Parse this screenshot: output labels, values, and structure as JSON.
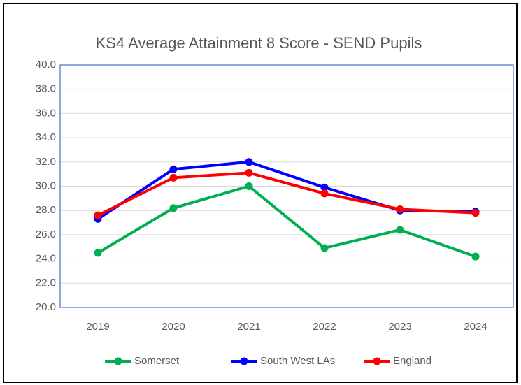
{
  "chart_data": {
    "type": "line",
    "title": "KS4 Average Attainment 8 Score - SEND Pupils",
    "categories": [
      "2019",
      "2020",
      "2021",
      "2022",
      "2023",
      "2024"
    ],
    "series": [
      {
        "name": "Somerset",
        "color": "#00b050",
        "values": [
          24.5,
          28.2,
          30.0,
          24.9,
          26.4,
          24.2
        ]
      },
      {
        "name": "South West LAs",
        "color": "#0000ff",
        "values": [
          27.3,
          31.4,
          32.0,
          29.9,
          28.0,
          27.9
        ]
      },
      {
        "name": "England",
        "color": "#ff0000",
        "values": [
          27.6,
          30.7,
          31.1,
          29.4,
          28.1,
          27.8
        ]
      }
    ],
    "ylim": [
      20,
      40
    ],
    "yticks": [
      {
        "value": 20,
        "label": "20.0"
      },
      {
        "value": 22,
        "label": "22.0"
      },
      {
        "value": 24,
        "label": "24.0"
      },
      {
        "value": 26,
        "label": "26.0"
      },
      {
        "value": 28,
        "label": "28.0"
      },
      {
        "value": 30,
        "label": "30.0"
      },
      {
        "value": 32,
        "label": "32.0"
      },
      {
        "value": 34,
        "label": "34.0"
      },
      {
        "value": 36,
        "label": "36.0"
      },
      {
        "value": 38,
        "label": "38.0"
      },
      {
        "value": 40,
        "label": "40.0"
      }
    ],
    "grid": true,
    "legend": "bottom"
  }
}
